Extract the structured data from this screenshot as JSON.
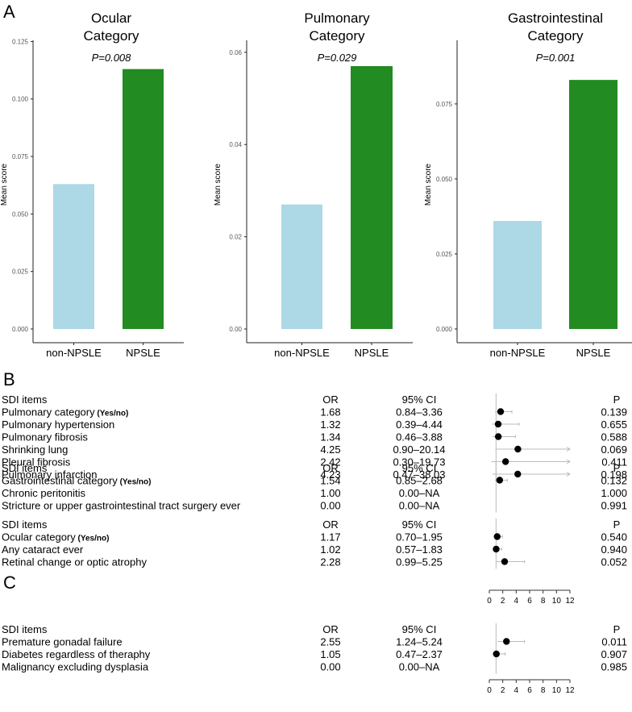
{
  "panel_labels": {
    "a": "A",
    "b": "B",
    "c": "C"
  },
  "chart_data": [
    {
      "type": "bar",
      "title": [
        "Ocular",
        "Category"
      ],
      "annotation": "P=0.008",
      "ylabel": "Mean score",
      "categories": [
        "non-NPSLE",
        "NPSLE"
      ],
      "values": [
        0.063,
        0.113
      ],
      "ylim": [
        0,
        0.1255
      ],
      "yticks": [
        "0.000",
        "0.025",
        "0.050",
        "0.075",
        "0.100",
        "0.125"
      ],
      "colors": [
        "#add8e6",
        "#228b22"
      ]
    },
    {
      "type": "bar",
      "title": [
        "Pulmonary",
        "Category"
      ],
      "annotation": "P=0.029",
      "ylabel": "Mean score",
      "categories": [
        "non-NPSLE",
        "NPSLE"
      ],
      "values": [
        0.027,
        0.057
      ],
      "ylim": [
        0,
        0.0626
      ],
      "yticks": [
        "0.00",
        "0.02",
        "0.04",
        "0.06"
      ],
      "colors": [
        "#add8e6",
        "#228b22"
      ]
    },
    {
      "type": "bar",
      "title": [
        "Gastrointestinal",
        "Category"
      ],
      "annotation": "P=0.001",
      "ylabel": "Mean score",
      "categories": [
        "non-NPSLE",
        "NPSLE"
      ],
      "values": [
        0.036,
        0.083
      ],
      "ylim": [
        0,
        0.0962
      ],
      "yticks": [
        "0.000",
        "0.025",
        "0.050",
        "0.075"
      ],
      "colors": [
        "#add8e6",
        "#228b22"
      ]
    },
    {
      "type": "table",
      "panel": "B",
      "headers": {
        "item": "SDI items",
        "or": "OR",
        "ci": "95% CI",
        "p": "P"
      },
      "xticks": [
        "0",
        "2",
        "4",
        "6",
        "8",
        "10",
        "12"
      ],
      "xlim": [
        0,
        12
      ],
      "groups": [
        {
          "rows": [
            {
              "item": "Pulmonary category",
              "suffix": "(Yes/no)",
              "or": "1.68",
              "ci": "0.84–3.36",
              "p": "0.139",
              "est": 1.68,
              "lo": 0.84,
              "hi": 3.36
            },
            {
              "item": "Pulmonary hypertension",
              "or": "1.32",
              "ci": "0.39–4.44",
              "p": "0.655",
              "est": 1.32,
              "lo": 0.39,
              "hi": 4.44
            },
            {
              "item": "Pulmonary fibrosis",
              "or": "1.34",
              "ci": "0.46–3.88",
              "p": "0.588",
              "est": 1.34,
              "lo": 0.46,
              "hi": 3.88
            },
            {
              "item": "Shrinking lung",
              "or": "4.25",
              "ci": "0.90–20.14",
              "p": "0.069",
              "est": 4.25,
              "lo": 0.9,
              "hi": 20.14
            },
            {
              "item": "Pleural fibrosis",
              "or": "2.42",
              "ci": "0.30–19.73",
              "p": "0.411",
              "est": 2.42,
              "lo": 0.3,
              "hi": 19.73
            },
            {
              "item": "Pulmonary infarction",
              "or": "4.23",
              "ci": "0.47–38.03",
              "p": "0.198",
              "est": 4.23,
              "lo": 0.47,
              "hi": 38.03
            }
          ]
        },
        {
          "rows": [
            {
              "item": "Gastrointestinal category",
              "suffix": "(Yes/no)",
              "or": "1.54",
              "ci": "0.85–2.68",
              "p": "0.132",
              "est": 1.54,
              "lo": 0.85,
              "hi": 2.68
            },
            {
              "item": "Chronic peritonitis",
              "or": "1.00",
              "ci": "0.00–NA",
              "p": "1.000",
              "est": null
            },
            {
              "item": "Stricture or upper gastrointestinal tract surgery ever",
              "or": "0.00",
              "ci": "0.00–NA",
              "p": "0.991",
              "est": null
            }
          ]
        },
        {
          "rows": [
            {
              "item": "Ocular category",
              "suffix": "(Yes/no)",
              "or": "1.17",
              "ci": "0.70–1.95",
              "p": "0.540",
              "est": 1.17,
              "lo": 0.7,
              "hi": 1.95
            },
            {
              "item": "Any cataract ever",
              "or": "1.02",
              "ci": "0.57–1.83",
              "p": "0.940",
              "est": 1.02,
              "lo": 0.57,
              "hi": 1.83
            },
            {
              "item": "Retinal change or optic atrophy",
              "or": "2.28",
              "ci": "0.99–5.25",
              "p": "0.052",
              "est": 2.28,
              "lo": 0.99,
              "hi": 5.25
            }
          ]
        }
      ]
    },
    {
      "type": "table",
      "panel": "C",
      "headers": {
        "item": "SDI items",
        "or": "OR",
        "ci": "95% CI",
        "p": "P"
      },
      "xticks": [
        "0",
        "2",
        "4",
        "6",
        "8",
        "10",
        "12"
      ],
      "xlim": [
        0,
        12
      ],
      "groups": [
        {
          "rows": [
            {
              "item": "Premature gonadal failure",
              "or": "2.55",
              "ci": "1.24–5.24",
              "p": "0.011",
              "est": 2.55,
              "lo": 1.24,
              "hi": 5.24
            },
            {
              "item": "Diabetes regardless of theraphy",
              "or": "1.05",
              "ci": "0.47–2.37",
              "p": "0.907",
              "est": 1.05,
              "lo": 0.47,
              "hi": 2.37
            },
            {
              "item": "Malignancy excluding dysplasia",
              "or": "0.00",
              "ci": "0.00–NA",
              "p": "0.985",
              "est": null
            }
          ]
        }
      ]
    }
  ]
}
